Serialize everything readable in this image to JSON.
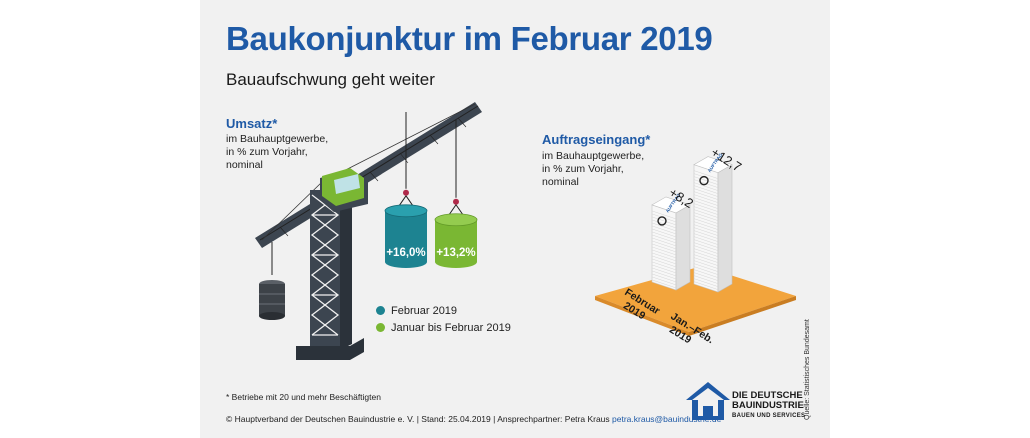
{
  "title": "Baukonjunktur im Februar 2019",
  "subtitle": "Bauaufschwung geht weiter",
  "colors": {
    "february": "#1d8391",
    "jan_feb": "#7ab733",
    "accent": "#1f5aa6",
    "platform": "#f2a43c"
  },
  "chart_data": [
    {
      "type": "bar",
      "title": "Umsatz*",
      "subtitle": "im Bauhauptgewerbe,\nin % zum Vorjahr,\nnominal",
      "categories": [
        "Februar 2019",
        "Januar bis Februar 2019"
      ],
      "values": [
        16.0,
        13.2
      ],
      "value_labels": [
        "+16,0%",
        "+13,2%"
      ],
      "unit": "%",
      "legend": [
        "Februar 2019",
        "Januar bis Februar 2019"
      ],
      "legend_placement": "bottom-right"
    },
    {
      "type": "bar",
      "title": "Auftragseingang*",
      "subtitle": "im Bauhauptgewerbe,\nin % zum Vorjahr,\nnominal",
      "categories": [
        "Februar 2019",
        "Jan.–Feb. 2019"
      ],
      "values": [
        8.2,
        12.7
      ],
      "value_labels": [
        "+8,2",
        "+12,7"
      ],
      "unit": "%"
    }
  ],
  "labels": {
    "feb": [
      "Februar",
      "2019"
    ],
    "janfeb": [
      "Jan.–Feb.",
      "2019"
    ],
    "stamp": "AUFTRAG"
  },
  "footnote": "* Betriebe mit 20 und mehr Beschäftigten",
  "footer": {
    "text": "© Hauptverband der Deutschen Bauindustrie e. V. | Stand: 25.04.2019 | Ansprechpartner: Petra Kraus ",
    "email": "petra.kraus@bauindustrie.de"
  },
  "source": "Quelle: Statistisches Bundesamt",
  "logo": {
    "line1": "DIE DEUTSCHE",
    "line2": "BAUINDUSTRIE",
    "line3": "BAUEN UND SERVICES"
  }
}
